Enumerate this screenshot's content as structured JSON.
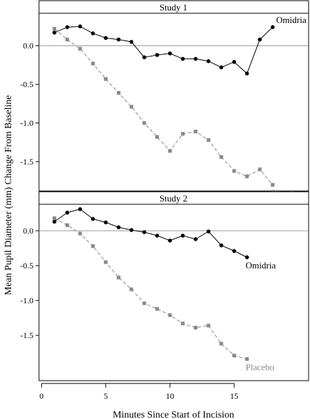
{
  "chart_data": {
    "type": "line",
    "ylabel": "Mean Pupil Diameter (mm) Change From Baseline",
    "xlabel": "Minutes Since Start of Incision",
    "xlim": [
      -0.2,
      20.8
    ],
    "x_ticks": [
      0,
      5,
      10,
      15
    ],
    "grid": false,
    "panels": [
      {
        "title": "Study 1",
        "ylim": [
          -1.88,
          0.42
        ],
        "y_ticks": [
          0.0,
          -0.5,
          -1.0,
          -1.5
        ],
        "y_tick_labels": [
          "0.0",
          "-0.5",
          "-1.0",
          "-1.5"
        ],
        "reference_line": 0,
        "series": [
          {
            "name": "Omidria",
            "color": "#000000",
            "marker": "circle",
            "dashed": false,
            "x": [
              1,
              2,
              3,
              4,
              5,
              6,
              7,
              8,
              9,
              10,
              11,
              12,
              13,
              14,
              15,
              16,
              17,
              18
            ],
            "values": [
              0.17,
              0.24,
              0.25,
              0.16,
              0.1,
              0.08,
              0.05,
              -0.15,
              -0.12,
              -0.1,
              -0.17,
              -0.17,
              -0.2,
              -0.28,
              -0.21,
              -0.36,
              0.08,
              0.24
            ]
          },
          {
            "name": "Placebo",
            "color": "#888888",
            "marker": "square",
            "dashed": true,
            "x": [
              1,
              2,
              3,
              4,
              5,
              6,
              7,
              8,
              9,
              10,
              11,
              12,
              13,
              14,
              15,
              16,
              17,
              18
            ],
            "values": [
              0.22,
              0.08,
              -0.04,
              -0.23,
              -0.43,
              -0.61,
              -0.79,
              -1.0,
              -1.18,
              -1.36,
              -1.14,
              -1.11,
              -1.22,
              -1.44,
              -1.62,
              -1.69,
              -1.6,
              -1.8
            ]
          }
        ]
      },
      {
        "title": "Study 2",
        "ylim": [
          -2.15,
          0.38
        ],
        "y_ticks": [
          0.0,
          -0.5,
          -1.0,
          -1.5
        ],
        "y_tick_labels": [
          "0.0",
          "-0.5",
          "-1.0",
          "-1.5"
        ],
        "reference_line": 0,
        "series": [
          {
            "name": "Omidria",
            "color": "#000000",
            "marker": "circle",
            "dashed": false,
            "x": [
              1,
              2,
              3,
              4,
              5,
              6,
              7,
              8,
              9,
              10,
              11,
              12,
              13,
              14,
              15,
              16
            ],
            "values": [
              0.13,
              0.26,
              0.31,
              0.17,
              0.12,
              0.05,
              0.01,
              -0.02,
              -0.07,
              -0.14,
              -0.07,
              -0.12,
              -0.01,
              -0.21,
              -0.29,
              -0.38
            ]
          },
          {
            "name": "Placebo",
            "color": "#888888",
            "marker": "square",
            "dashed": true,
            "x": [
              1,
              2,
              3,
              4,
              5,
              6,
              7,
              8,
              9,
              10,
              11,
              12,
              13,
              14,
              15,
              16
            ],
            "values": [
              0.18,
              0.08,
              -0.04,
              -0.22,
              -0.45,
              -0.67,
              -0.84,
              -1.04,
              -1.12,
              -1.21,
              -1.33,
              -1.39,
              -1.36,
              -1.62,
              -1.79,
              -1.84
            ]
          }
        ]
      }
    ]
  }
}
